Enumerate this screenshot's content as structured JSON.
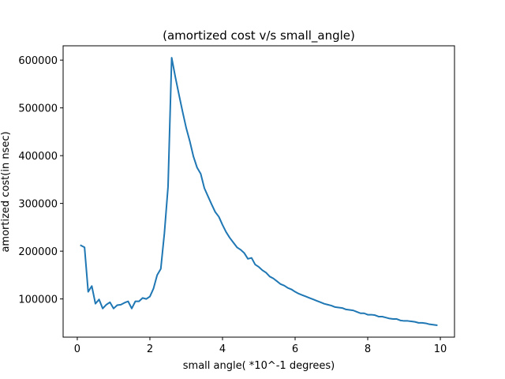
{
  "chart_data": {
    "type": "line",
    "title": "(amortized cost v/s small_angle)",
    "xlabel": "small angle( *10^-1 degrees)",
    "ylabel": "amortized cost(in nsec)",
    "xlim": [
      -0.39,
      10.39
    ],
    "ylim": [
      20000,
      630000
    ],
    "xticks": [
      0,
      2,
      4,
      6,
      8,
      10
    ],
    "xtick_labels": [
      "0",
      "2",
      "4",
      "6",
      "8",
      "10"
    ],
    "yticks": [
      100000,
      200000,
      300000,
      400000,
      500000,
      600000
    ],
    "ytick_labels": [
      "100000",
      "200000",
      "300000",
      "400000",
      "500000",
      "600000"
    ],
    "grid": false,
    "series": [
      {
        "color": "#1f77b4",
        "x": [
          0.1,
          0.2,
          0.3,
          0.4,
          0.5,
          0.6,
          0.7,
          0.8,
          0.9,
          1.0,
          1.1,
          1.2,
          1.3,
          1.4,
          1.5,
          1.6,
          1.7,
          1.8,
          1.9,
          2.0,
          2.1,
          2.2,
          2.3,
          2.4,
          2.5,
          2.6,
          2.7,
          2.8,
          2.9,
          3.0,
          3.1,
          3.2,
          3.3,
          3.4,
          3.5,
          3.6,
          3.7,
          3.8,
          3.9,
          4.0,
          4.1,
          4.2,
          4.3,
          4.4,
          4.5,
          4.6,
          4.7,
          4.8,
          4.9,
          5.0,
          5.1,
          5.2,
          5.3,
          5.4,
          5.5,
          5.6,
          5.7,
          5.8,
          5.9,
          6.0,
          6.1,
          6.2,
          6.3,
          6.4,
          6.5,
          6.6,
          6.7,
          6.8,
          6.9,
          7.0,
          7.1,
          7.2,
          7.3,
          7.4,
          7.5,
          7.6,
          7.7,
          7.8,
          7.9,
          8.0,
          8.1,
          8.2,
          8.3,
          8.4,
          8.5,
          8.6,
          8.7,
          8.8,
          8.9,
          9.0,
          9.1,
          9.2,
          9.3,
          9.4,
          9.5,
          9.6,
          9.7,
          9.8,
          9.9
        ],
        "y": [
          212000,
          208000,
          115000,
          127000,
          90000,
          99000,
          80000,
          88000,
          93000,
          80000,
          87000,
          88000,
          92000,
          95000,
          80000,
          95000,
          95000,
          102000,
          100000,
          105000,
          122000,
          150000,
          163000,
          238000,
          335000,
          605000,
          565000,
          528000,
          492000,
          458000,
          430000,
          398000,
          375000,
          362000,
          332000,
          315000,
          298000,
          282000,
          272000,
          255000,
          240000,
          228000,
          218000,
          208000,
          203000,
          196000,
          184000,
          186000,
          172000,
          167000,
          160000,
          155000,
          147000,
          143000,
          137000,
          131000,
          128000,
          123000,
          120000,
          115000,
          111000,
          108000,
          105000,
          102000,
          99000,
          96000,
          93000,
          90000,
          88000,
          86000,
          83000,
          82000,
          81000,
          78000,
          77000,
          76000,
          73000,
          70000,
          70000,
          67000,
          67000,
          66000,
          63000,
          63000,
          61000,
          59000,
          58000,
          58000,
          55000,
          54000,
          54000,
          53000,
          52000,
          50000,
          50000,
          49000,
          47000,
          46000,
          45000
        ]
      }
    ]
  }
}
